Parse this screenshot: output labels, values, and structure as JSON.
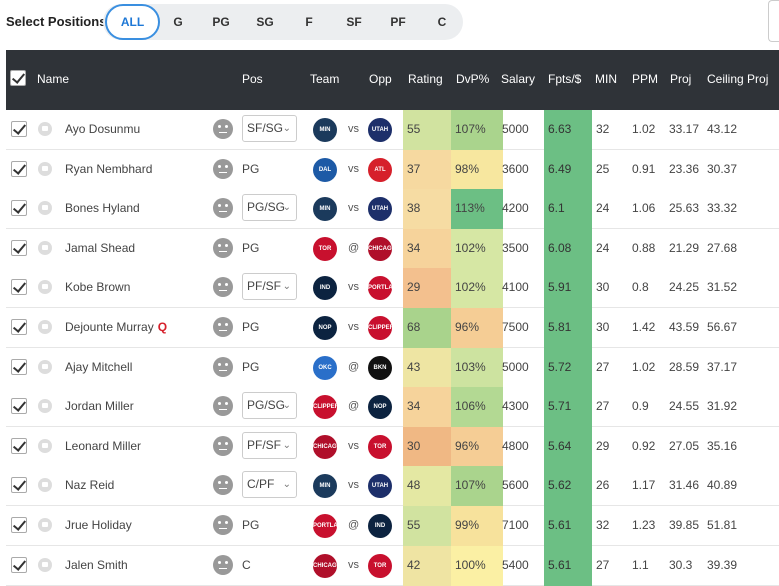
{
  "filter": {
    "label": "Select Positions",
    "positions": [
      "ALL",
      "G",
      "PG",
      "SG",
      "F",
      "SF",
      "PF",
      "C"
    ],
    "active": "ALL"
  },
  "table": {
    "headers": {
      "name": "Name",
      "pos": "Pos",
      "team": "Team",
      "opp": "Opp",
      "rating": "Rating",
      "dvp": "DvP%",
      "salary": "Salary",
      "fpts": "Fpts/$",
      "min": "MIN",
      "ppm": "PPM",
      "proj": "Proj",
      "ceiling": "Ceiling Proj"
    },
    "colors": {
      "fpts": "#6cbf84",
      "header_bg": "#2f3338",
      "accent": "#1e78d6"
    },
    "rows": [
      {
        "name": "Ayo Dosunmu",
        "q": "",
        "pos": "SF/SG",
        "pos_select": true,
        "team": "MIN",
        "team_color": "#1b3a5c",
        "at": "vs",
        "opp": "UTAH",
        "opp_color": "#1d2f6a",
        "rating": "55",
        "rating_color": "#d1e3a0",
        "dvp": "107%",
        "dvp_color": "#aad48d",
        "salary": "5000",
        "fpts": "6.63",
        "min": "32",
        "ppm": "1.02",
        "proj": "33.17",
        "ceiling": "43.12"
      },
      {
        "name": "Ryan Nembhard",
        "q": "",
        "pos": "PG",
        "pos_select": false,
        "team": "DAL",
        "team_color": "#1d5aa6",
        "at": "vs",
        "opp": "ATL",
        "opp_color": "#d6202b",
        "rating": "37",
        "rating_color": "#f6d9a0",
        "dvp": "98%",
        "dvp_color": "#f7e79f",
        "salary": "3600",
        "fpts": "6.49",
        "min": "25",
        "ppm": "0.91",
        "proj": "23.36",
        "ceiling": "30.37"
      },
      {
        "name": "Bones Hyland",
        "q": "",
        "pos": "PG/SG",
        "pos_select": true,
        "team": "MIN",
        "team_color": "#1b3a5c",
        "at": "vs",
        "opp": "UTAH",
        "opp_color": "#1d2f6a",
        "rating": "38",
        "rating_color": "#f6dca3",
        "dvp": "113%",
        "dvp_color": "#6cbf84",
        "salary": "4200",
        "fpts": "6.1",
        "min": "24",
        "ppm": "1.06",
        "proj": "25.63",
        "ceiling": "33.32"
      },
      {
        "name": "Jamal Shead",
        "q": "",
        "pos": "PG",
        "pos_select": false,
        "team": "TOR",
        "team_color": "#c8102e",
        "at": "@",
        "opp": "CHICAGO",
        "opp_color": "#b00f2a",
        "rating": "34",
        "rating_color": "#f6d39b",
        "dvp": "102%",
        "dvp_color": "#d6e7a4",
        "salary": "3500",
        "fpts": "6.08",
        "min": "24",
        "ppm": "0.88",
        "proj": "21.29",
        "ceiling": "27.68"
      },
      {
        "name": "Kobe Brown",
        "q": "",
        "pos": "PF/SF",
        "pos_select": true,
        "team": "IND",
        "team_color": "#0c2340",
        "at": "vs",
        "opp": "PORTLAND",
        "opp_color": "#c8102e",
        "rating": "29",
        "rating_color": "#f3c08e",
        "dvp": "102%",
        "dvp_color": "#d6e7a4",
        "salary": "4100",
        "fpts": "5.91",
        "min": "30",
        "ppm": "0.8",
        "proj": "24.25",
        "ceiling": "31.52"
      },
      {
        "name": "Dejounte Murray",
        "q": "Q",
        "pos": "PG",
        "pos_select": false,
        "team": "NOP",
        "team_color": "#0c2340",
        "at": "vs",
        "opp": "CLIPPERS",
        "opp_color": "#c8102e",
        "rating": "68",
        "rating_color": "#a9d38c",
        "dvp": "96%",
        "dvp_color": "#f5cd95",
        "salary": "7500",
        "fpts": "5.81",
        "min": "30",
        "ppm": "1.42",
        "proj": "43.59",
        "ceiling": "56.67"
      },
      {
        "name": "Ajay Mitchell",
        "q": "",
        "pos": "PG",
        "pos_select": false,
        "team": "OKC",
        "team_color": "#2a6fc9",
        "at": "@",
        "opp": "BKN",
        "opp_color": "#111111",
        "rating": "43",
        "rating_color": "#eee5a3",
        "dvp": "103%",
        "dvp_color": "#cde3a0",
        "salary": "5000",
        "fpts": "5.72",
        "min": "27",
        "ppm": "1.02",
        "proj": "28.59",
        "ceiling": "37.17"
      },
      {
        "name": "Jordan Miller",
        "q": "",
        "pos": "PG/SG",
        "pos_select": true,
        "team": "CLIPPERS",
        "team_color": "#c8102e",
        "at": "@",
        "opp": "NOP",
        "opp_color": "#0c2340",
        "rating": "34",
        "rating_color": "#f6d39b",
        "dvp": "106%",
        "dvp_color": "#b3d993",
        "salary": "4300",
        "fpts": "5.71",
        "min": "27",
        "ppm": "0.9",
        "proj": "24.55",
        "ceiling": "31.92"
      },
      {
        "name": "Leonard Miller",
        "q": "",
        "pos": "PF/SF",
        "pos_select": true,
        "team": "CHICAGO",
        "team_color": "#b00f2a",
        "at": "vs",
        "opp": "TOR",
        "opp_color": "#c8102e",
        "rating": "30",
        "rating_color": "#f0b884",
        "dvp": "96%",
        "dvp_color": "#f5cd95",
        "salary": "4800",
        "fpts": "5.64",
        "min": "29",
        "ppm": "0.92",
        "proj": "27.05",
        "ceiling": "35.16"
      },
      {
        "name": "Naz Reid",
        "q": "",
        "pos": "C/PF",
        "pos_select": true,
        "team": "MIN",
        "team_color": "#1b3a5c",
        "at": "vs",
        "opp": "UTAH",
        "opp_color": "#1d2f6a",
        "rating": "48",
        "rating_color": "#e4e8a3",
        "dvp": "107%",
        "dvp_color": "#aad48d",
        "salary": "5600",
        "fpts": "5.62",
        "min": "26",
        "ppm": "1.17",
        "proj": "31.46",
        "ceiling": "40.89"
      },
      {
        "name": "Jrue Holiday",
        "q": "",
        "pos": "PG",
        "pos_select": false,
        "team": "PORTLAND",
        "team_color": "#c8102e",
        "at": "@",
        "opp": "IND",
        "opp_color": "#0c2340",
        "rating": "55",
        "rating_color": "#d1e3a0",
        "dvp": "99%",
        "dvp_color": "#f7e29c",
        "salary": "7100",
        "fpts": "5.61",
        "min": "32",
        "ppm": "1.23",
        "proj": "39.85",
        "ceiling": "51.81"
      },
      {
        "name": "Jalen Smith",
        "q": "",
        "pos": "C",
        "pos_select": false,
        "team": "CHICAGO",
        "team_color": "#b00f2a",
        "at": "vs",
        "opp": "TOR",
        "opp_color": "#c8102e",
        "rating": "42",
        "rating_color": "#efe4a3",
        "dvp": "100%",
        "dvp_color": "#fbf0a4",
        "salary": "5400",
        "fpts": "5.61",
        "min": "27",
        "ppm": "1.1",
        "proj": "30.3",
        "ceiling": "39.39"
      }
    ]
  }
}
